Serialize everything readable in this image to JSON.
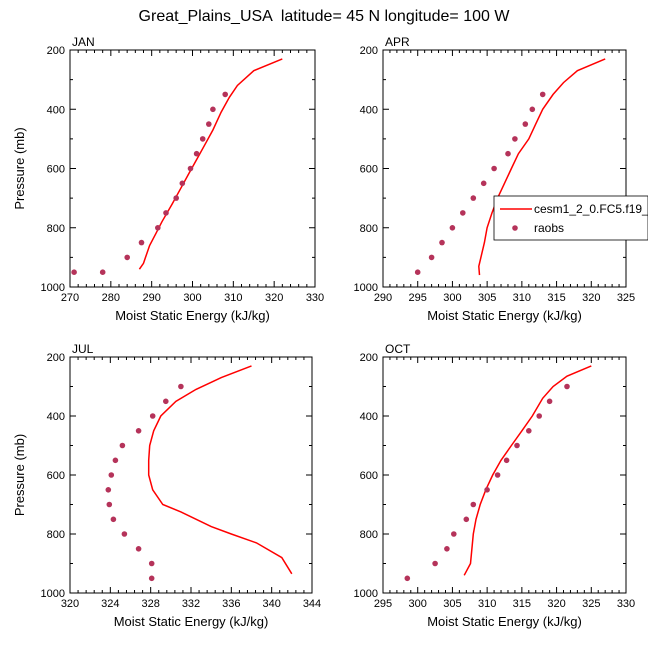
{
  "title": "Great_Plains_USA  latitude= 45 N longitude= 100 W",
  "colors": {
    "model_line": "#ff0000",
    "obs_marker": "#b5335a",
    "axes": "#000000"
  },
  "legend": {
    "entries": [
      {
        "label": "cesm1_2_0.FC5.f19_",
        "symbol": "line"
      },
      {
        "label": "raobs",
        "symbol": "marker"
      }
    ],
    "placement": "right of APR panel"
  },
  "chart_data": [
    {
      "type": "line",
      "title": "JAN",
      "xlabel": "Moist Static Energy (kJ/kg)",
      "ylabel": "Pressure (mb)",
      "xlim": [
        270,
        330
      ],
      "ylim": [
        1000,
        200
      ],
      "y_inverted": true,
      "x_ticks": [
        270,
        280,
        290,
        300,
        310,
        320,
        330
      ],
      "y_ticks": [
        200,
        400,
        600,
        800,
        1000
      ],
      "series": [
        {
          "name": "cesm1_2_0.FC5.f19_",
          "style": "line",
          "points": [
            [
              322,
              230
            ],
            [
              315,
              270
            ],
            [
              311,
              320
            ],
            [
              309,
              360
            ],
            [
              307,
              410
            ],
            [
              305,
              470
            ],
            [
              303,
              520
            ],
            [
              301,
              570
            ],
            [
              299,
              620
            ],
            [
              297,
              670
            ],
            [
              295,
              720
            ],
            [
              292.5,
              780
            ],
            [
              291,
              820
            ],
            [
              289.5,
              860
            ],
            [
              288.5,
              900
            ],
            [
              288,
              920
            ],
            [
              287,
              940
            ]
          ]
        },
        {
          "name": "raobs",
          "style": "markers",
          "points": [
            [
              308,
              350
            ],
            [
              305,
              400
            ],
            [
              304,
              450
            ],
            [
              302.5,
              500
            ],
            [
              301,
              550
            ],
            [
              299.5,
              600
            ],
            [
              297.5,
              650
            ],
            [
              296,
              700
            ],
            [
              293.5,
              750
            ],
            [
              291.5,
              800
            ],
            [
              287.5,
              850
            ],
            [
              284,
              900
            ],
            [
              278,
              950
            ],
            [
              271,
              950
            ]
          ]
        }
      ]
    },
    {
      "type": "line",
      "title": "APR",
      "xlabel": "Moist Static Energy (kJ/kg)",
      "ylabel": "",
      "xlim": [
        290,
        325
      ],
      "ylim": [
        1000,
        200
      ],
      "y_inverted": true,
      "x_ticks": [
        290,
        295,
        300,
        305,
        310,
        315,
        320,
        325
      ],
      "y_ticks": [
        200,
        400,
        600,
        800,
        1000
      ],
      "series": [
        {
          "name": "cesm1_2_0.FC5.f19_",
          "style": "line",
          "points": [
            [
              322,
              230
            ],
            [
              318,
              270
            ],
            [
              316,
              310
            ],
            [
              314.5,
              350
            ],
            [
              313,
              400
            ],
            [
              312,
              450
            ],
            [
              311,
              500
            ],
            [
              309.5,
              550
            ],
            [
              308.5,
              600
            ],
            [
              307.5,
              650
            ],
            [
              306.5,
              700
            ],
            [
              305.7,
              750
            ],
            [
              305,
              800
            ],
            [
              304.6,
              850
            ],
            [
              304.1,
              900
            ],
            [
              303.8,
              930
            ],
            [
              303.9,
              960
            ]
          ]
        },
        {
          "name": "raobs",
          "style": "markers",
          "points": [
            [
              313,
              350
            ],
            [
              311.5,
              400
            ],
            [
              310.5,
              450
            ],
            [
              309,
              500
            ],
            [
              308,
              550
            ],
            [
              306,
              600
            ],
            [
              304.5,
              650
            ],
            [
              303,
              700
            ],
            [
              301.5,
              750
            ],
            [
              300,
              800
            ],
            [
              298.5,
              850
            ],
            [
              297,
              900
            ],
            [
              295,
              950
            ]
          ]
        }
      ]
    },
    {
      "type": "line",
      "title": "JUL",
      "xlabel": "Moist Static Energy (kJ/kg)",
      "ylabel": "Pressure (mb)",
      "xlim": [
        320,
        344
      ],
      "ylim": [
        1000,
        200
      ],
      "y_inverted": true,
      "x_ticks": [
        320,
        324,
        328,
        332,
        336,
        340,
        344
      ],
      "y_ticks": [
        200,
        400,
        600,
        800,
        1000
      ],
      "series": [
        {
          "name": "cesm1_2_0.FC5.f19_",
          "style": "line",
          "points": [
            [
              338,
              230
            ],
            [
              335,
              270
            ],
            [
              332.5,
              310
            ],
            [
              330.5,
              350
            ],
            [
              329,
              400
            ],
            [
              328.3,
              450
            ],
            [
              327.9,
              500
            ],
            [
              327.8,
              550
            ],
            [
              327.8,
              600
            ],
            [
              328.2,
              650
            ],
            [
              329.2,
              700
            ],
            [
              331,
              725
            ],
            [
              334,
              775
            ],
            [
              336,
              800
            ],
            [
              338.5,
              830
            ],
            [
              341,
              880
            ],
            [
              342,
              935
            ]
          ]
        },
        {
          "name": "raobs",
          "style": "markers",
          "points": [
            [
              331,
              300
            ],
            [
              329.5,
              350
            ],
            [
              328.2,
              400
            ],
            [
              326.8,
              450
            ],
            [
              325.2,
              500
            ],
            [
              324.5,
              550
            ],
            [
              324.1,
              600
            ],
            [
              323.8,
              650
            ],
            [
              323.9,
              700
            ],
            [
              324.3,
              750
            ],
            [
              325.4,
              800
            ],
            [
              326.8,
              850
            ],
            [
              328.1,
              900
            ],
            [
              328.1,
              950
            ]
          ]
        }
      ]
    },
    {
      "type": "line",
      "title": "OCT",
      "xlabel": "Moist Static Energy (kJ/kg)",
      "ylabel": "",
      "xlim": [
        295,
        330
      ],
      "ylim": [
        1000,
        200
      ],
      "y_inverted": true,
      "x_ticks": [
        295,
        300,
        305,
        310,
        315,
        320,
        325,
        330
      ],
      "y_ticks": [
        200,
        400,
        600,
        800,
        1000
      ],
      "series": [
        {
          "name": "cesm1_2_0.FC5.f19_",
          "style": "line",
          "points": [
            [
              325,
              230
            ],
            [
              321.5,
              265
            ],
            [
              319.5,
              300
            ],
            [
              318,
              340
            ],
            [
              316.5,
              400
            ],
            [
              315,
              450
            ],
            [
              313.5,
              500
            ],
            [
              312,
              550
            ],
            [
              310.8,
              600
            ],
            [
              309.8,
              650
            ],
            [
              309,
              700
            ],
            [
              308.4,
              750
            ],
            [
              308,
              800
            ],
            [
              307.8,
              850
            ],
            [
              307.6,
              900
            ],
            [
              306.7,
              940
            ]
          ]
        },
        {
          "name": "raobs",
          "style": "markers",
          "points": [
            [
              321.5,
              300
            ],
            [
              319,
              350
            ],
            [
              317.5,
              400
            ],
            [
              316,
              450
            ],
            [
              314.3,
              500
            ],
            [
              312.8,
              550
            ],
            [
              311.5,
              600
            ],
            [
              310,
              650
            ],
            [
              308,
              700
            ],
            [
              307,
              750
            ],
            [
              305.2,
              800
            ],
            [
              304.2,
              850
            ],
            [
              302.5,
              900
            ],
            [
              298.5,
              950
            ]
          ]
        }
      ]
    }
  ]
}
